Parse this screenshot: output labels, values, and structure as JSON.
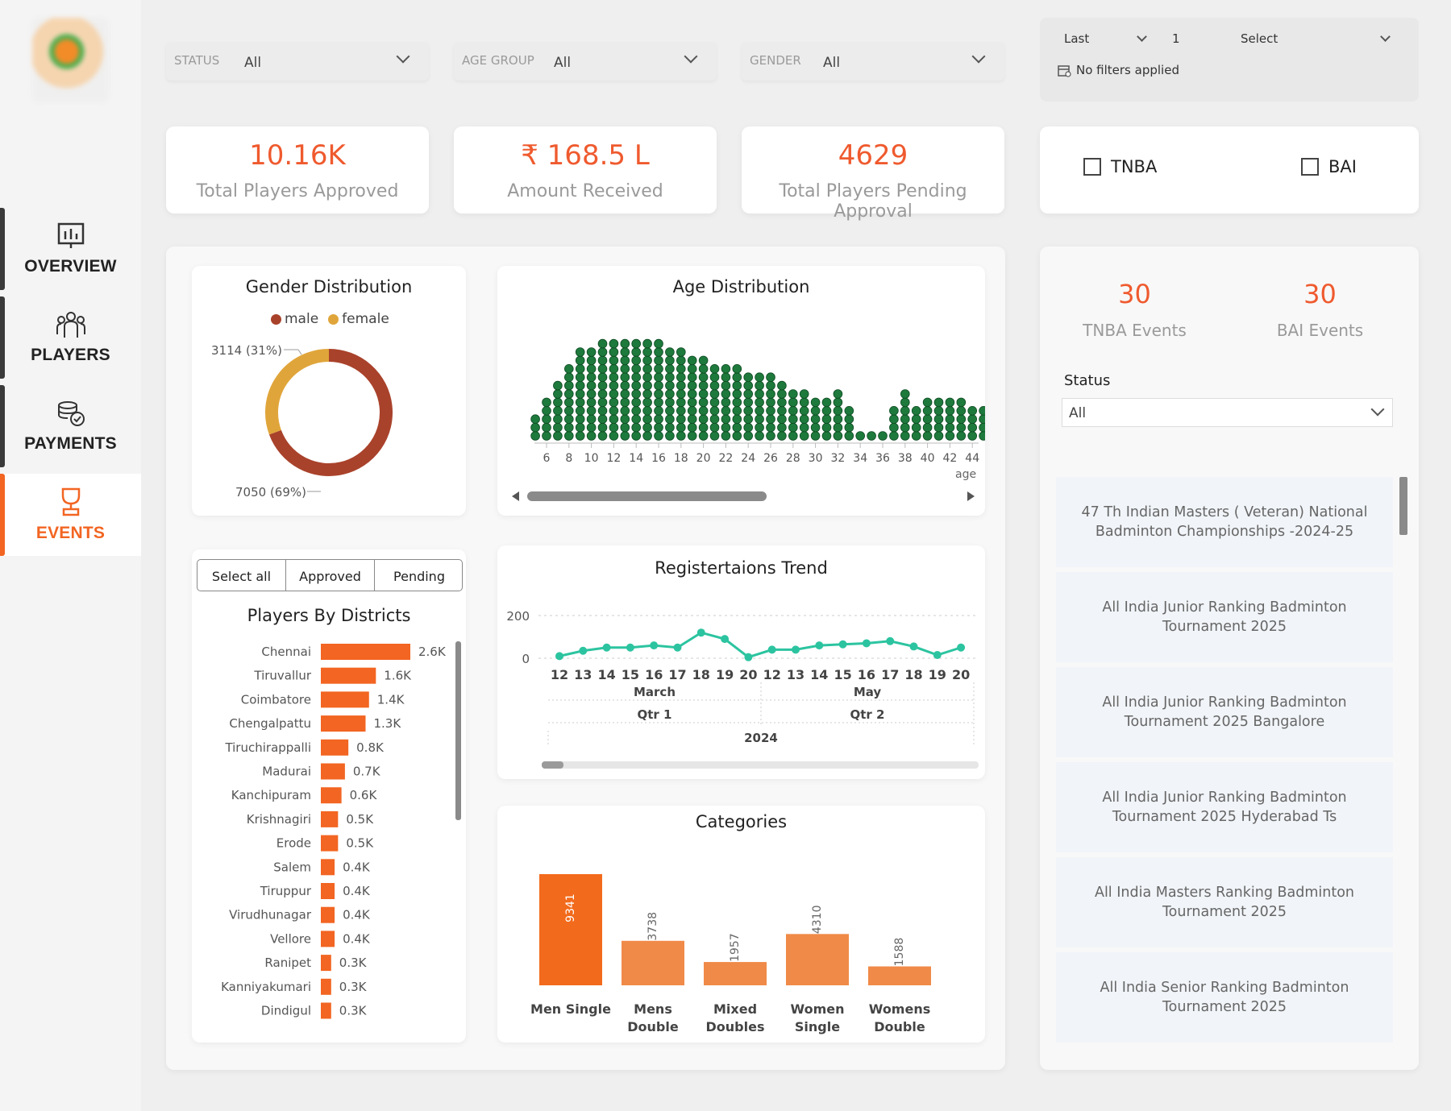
{
  "sidebar": {
    "items": [
      {
        "label": "OVERVIEW",
        "icon": "chart-board-icon"
      },
      {
        "label": "PLAYERS",
        "icon": "players-group-icon"
      },
      {
        "label": "PAYMENTS",
        "icon": "payments-icon"
      },
      {
        "label": "EVENTS",
        "icon": "trophy-icon",
        "active": true
      }
    ]
  },
  "filters": {
    "status": {
      "label": "STATUS",
      "value": "All"
    },
    "age_group": {
      "label": "AGE GROUP",
      "value": "All"
    },
    "gender": {
      "label": "GENDER",
      "value": "All"
    }
  },
  "date_filter": {
    "period": "Last",
    "count": "1",
    "unit": "Select",
    "note": "No filters applied"
  },
  "kpis": [
    {
      "value": "10.16K",
      "label": "Total Players Approved"
    },
    {
      "value": "₹ 168.5 L",
      "label": "Amount Received"
    },
    {
      "value": "4629",
      "label": "Total Players Pending Approval"
    }
  ],
  "org_checkboxes": [
    "TNBA",
    "BAI"
  ],
  "gender_chart": {
    "title": "Gender Distribution",
    "legend": [
      "male",
      "female"
    ],
    "colors": {
      "male": "#a9422b",
      "female": "#e0a53a"
    },
    "labels": {
      "female": "3114 (31%)",
      "male": "7050 (69%)"
    }
  },
  "age_chart": {
    "title": "Age Distribution",
    "xlabel": "age",
    "ticks": [
      "6",
      "8",
      "10",
      "12",
      "14",
      "16",
      "18",
      "20",
      "22",
      "24",
      "26",
      "28",
      "30",
      "32",
      "34",
      "36",
      "38",
      "40",
      "42",
      "44"
    ],
    "dot_color": "#1e7a3c"
  },
  "district_toggle": [
    "Select all",
    "Approved",
    "Pending"
  ],
  "districts_chart": {
    "title": "Players By Districts",
    "bar_color": "#f26522",
    "rows": [
      {
        "name": "Chennai",
        "label": "2.6K"
      },
      {
        "name": "Tiruvallur",
        "label": "1.6K"
      },
      {
        "name": "Coimbatore",
        "label": "1.4K"
      },
      {
        "name": "Chengalpattu",
        "label": "1.3K"
      },
      {
        "name": "Tiruchirappalli",
        "label": "0.8K"
      },
      {
        "name": "Madurai",
        "label": "0.7K"
      },
      {
        "name": "Kanchipuram",
        "label": "0.6K"
      },
      {
        "name": "Krishnagiri",
        "label": "0.5K"
      },
      {
        "name": "Erode",
        "label": "0.5K"
      },
      {
        "name": "Salem",
        "label": "0.4K"
      },
      {
        "name": "Tiruppur",
        "label": "0.4K"
      },
      {
        "name": "Virudhunagar",
        "label": "0.4K"
      },
      {
        "name": "Vellore",
        "label": "0.4K"
      },
      {
        "name": "Ranipet",
        "label": "0.3K"
      },
      {
        "name": "Kanniyakumari",
        "label": "0.3K"
      },
      {
        "name": "Dindigul",
        "label": "0.3K"
      }
    ]
  },
  "trend_chart": {
    "title": "Registertaions Trend",
    "y_ticks": [
      "200",
      "0"
    ],
    "days": [
      "12",
      "13",
      "14",
      "15",
      "16",
      "17",
      "18",
      "19",
      "20",
      "12",
      "13",
      "14",
      "15",
      "16",
      "17",
      "18",
      "19",
      "20"
    ],
    "months": [
      "March",
      "May"
    ],
    "quarters": [
      "Qtr 1",
      "Qtr 2"
    ],
    "year": "2024",
    "line_color": "#2cc4a0"
  },
  "categories_chart": {
    "title": "Categories",
    "bars": [
      {
        "name": "Men Single",
        "label": "9341"
      },
      {
        "name": "Mens Double",
        "label": "3738"
      },
      {
        "name": "Mixed Doubles",
        "label": "1957"
      },
      {
        "name": "Women Single",
        "label": "4310"
      },
      {
        "name": "Womens Double",
        "label": "1588"
      }
    ],
    "colors": {
      "primary": "#f26a1b",
      "secondary": "#f08a48"
    }
  },
  "events_summary": [
    {
      "value": "30",
      "label": "TNBA Events"
    },
    {
      "value": "30",
      "label": "BAI Events"
    }
  ],
  "status_filter": {
    "label": "Status",
    "value": "All"
  },
  "events": [
    "47 Th Indian Masters ( Veteran) National Badminton Championships -2024-25",
    "All India Junior Ranking Badminton Tournament 2025",
    "All India Junior Ranking Badminton Tournament 2025 Bangalore",
    "All India Junior Ranking Badminton Tournament 2025 Hyderabad Ts",
    "All India Masters Ranking Badminton Tournament 2025",
    "All India Senior Ranking Badminton Tournament 2025"
  ],
  "chart_data": [
    {
      "type": "pie",
      "title": "Gender Distribution",
      "categories": [
        "male",
        "female"
      ],
      "values": [
        7050,
        3114
      ],
      "legend": "top"
    },
    {
      "type": "scatter",
      "title": "Age Distribution",
      "xlabel": "age",
      "x": [
        5,
        6,
        7,
        8,
        9,
        10,
        11,
        12,
        13,
        14,
        15,
        16,
        17,
        18,
        19,
        20,
        21,
        22,
        23,
        24,
        25,
        26,
        27,
        28,
        29,
        30,
        31,
        32,
        33,
        34,
        35,
        36,
        37,
        38,
        39,
        40,
        41,
        42,
        43,
        44,
        45
      ],
      "values": [
        3,
        5,
        7,
        9,
        11,
        11,
        12,
        12,
        12,
        12,
        12,
        12,
        11,
        11,
        10,
        10,
        9,
        9,
        9,
        8,
        8,
        8,
        7,
        6,
        6,
        5,
        5,
        6,
        4,
        1,
        1,
        1,
        4,
        6,
        4,
        5,
        5,
        5,
        5,
        4,
        4
      ],
      "xlim": [
        5,
        45
      ]
    },
    {
      "type": "bar",
      "title": "Players By Districts",
      "categories": [
        "Chennai",
        "Tiruvallur",
        "Coimbatore",
        "Chengalpattu",
        "Tiruchirappalli",
        "Madurai",
        "Kanchipuram",
        "Krishnagiri",
        "Erode",
        "Salem",
        "Tiruppur",
        "Virudhunagar",
        "Vellore",
        "Ranipet",
        "Kanniyakumari",
        "Dindigul"
      ],
      "values": [
        2600,
        1600,
        1400,
        1300,
        800,
        700,
        600,
        500,
        500,
        400,
        400,
        400,
        400,
        300,
        300,
        300
      ]
    },
    {
      "type": "line",
      "title": "Registertaions Trend",
      "x": [
        "12",
        "13",
        "14",
        "15",
        "16",
        "17",
        "18",
        "19",
        "20",
        "12",
        "13",
        "14",
        "15",
        "16",
        "17",
        "18",
        "19",
        "20"
      ],
      "values": [
        10,
        35,
        50,
        50,
        60,
        50,
        120,
        90,
        5,
        40,
        40,
        60,
        65,
        70,
        80,
        55,
        15,
        50
      ],
      "ylim": [
        -20,
        210
      ]
    },
    {
      "type": "bar",
      "title": "Categories",
      "categories": [
        "Men Single",
        "Mens Double",
        "Mixed Doubles",
        "Women Single",
        "Womens Double"
      ],
      "values": [
        9341,
        3738,
        1957,
        4310,
        1588
      ]
    }
  ]
}
